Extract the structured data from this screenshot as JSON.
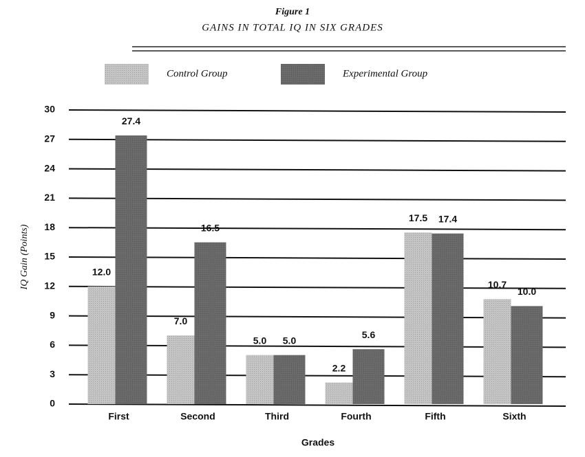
{
  "chart_data": {
    "type": "bar",
    "title": "Figure 1",
    "subtitle": "GAINS IN TOTAL IQ IN SIX GRADES",
    "xlabel": "Grades",
    "ylabel": "IQ Gain (Points)",
    "categories": [
      "First",
      "Second",
      "Third",
      "Fourth",
      "Fifth",
      "Sixth"
    ],
    "series": [
      {
        "name": "Control Group",
        "color": "#c4c4c4",
        "values": [
          12.0,
          7.0,
          5.0,
          2.2,
          17.5,
          10.7
        ],
        "value_labels": [
          "12.0",
          "7.0",
          "5.0",
          "2.2",
          "17.5",
          "10.7"
        ]
      },
      {
        "name": "Experimental Group",
        "color": "#6a6a6a",
        "values": [
          27.4,
          16.5,
          5.0,
          5.6,
          17.4,
          10.0
        ],
        "value_labels": [
          "27.4",
          "16.5",
          "5.0",
          "5.6",
          "17.4",
          "10.0"
        ]
      }
    ],
    "ylim": [
      0,
      30
    ],
    "yticks": [
      0,
      3,
      6,
      9,
      12,
      15,
      18,
      21,
      24,
      27,
      30
    ],
    "grid": true,
    "legend": "top"
  }
}
